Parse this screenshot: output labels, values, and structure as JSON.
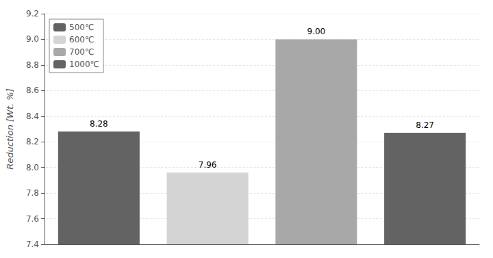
{
  "chart_data": {
    "type": "bar",
    "categories": [
      null,
      null,
      null,
      null
    ],
    "series": [
      {
        "name": "500℃",
        "color": "#636363",
        "values": [
          8.28,
          null,
          null,
          null
        ],
        "value_labels": [
          "8.28",
          null,
          null,
          null
        ]
      },
      {
        "name": "600℃",
        "color": "#d4d4d4",
        "values": [
          null,
          7.96,
          null,
          null
        ],
        "value_labels": [
          null,
          "7.96",
          null,
          null
        ]
      },
      {
        "name": "700℃",
        "color": "#a8a8a8",
        "values": [
          null,
          null,
          9.0,
          null
        ],
        "value_labels": [
          null,
          null,
          "9.00",
          null
        ]
      },
      {
        "name": "1000℃",
        "color": "#636363",
        "values": [
          null,
          null,
          null,
          8.27
        ],
        "value_labels": [
          null,
          null,
          null,
          "8.27"
        ]
      }
    ],
    "ylabel": "Reduction [Wt. %]",
    "ylim": [
      7.4,
      9.2
    ],
    "yticks": [
      7.4,
      7.6,
      7.8,
      {
        "value": 8.0,
        "label": "8.0"
      },
      8.2,
      8.4,
      8.6,
      8.8,
      {
        "value": 9.0,
        "label": "9.0"
      },
      9.2
    ],
    "grid": true,
    "legend": "upper left",
    "data_labels": true,
    "tick_labels": "y"
  }
}
